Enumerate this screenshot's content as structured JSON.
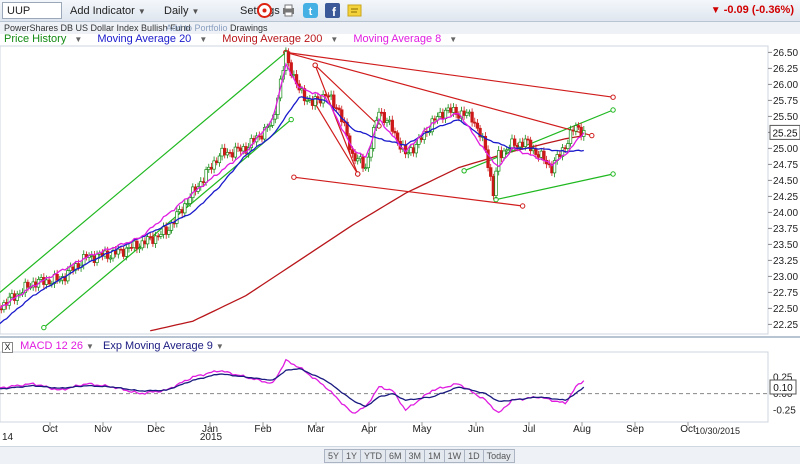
{
  "toolbar": {
    "symbol": "UUP",
    "add_indicator": "Add Indicator",
    "period": "Daily",
    "settings": "Settings",
    "change": "-0.09 (-0.36%)",
    "icons": [
      "reset-icon",
      "print-icon",
      "twitter-icon",
      "facebook-icon",
      "note-icon"
    ]
  },
  "subbar": {
    "fund_name": "PowerShares DB US Dollar Index Bullish Fund",
    "add_to_portfolio": "Add to Portfolio",
    "drawings": "Drawings"
  },
  "legend": {
    "price_history": "Price History",
    "ma20": "Moving Average 20",
    "ma200": "Moving Average 200",
    "ma8": "Moving Average 8"
  },
  "colors": {
    "price": "#138a13",
    "ma20": "#1a1acc",
    "ma200": "#b8161a",
    "ma8": "#e01ce0",
    "trendline_green": "#1fb81f",
    "trendline_red": "#d01c1c",
    "price_label_bg": "#ffffff"
  },
  "last_price_label": "25.25",
  "macd": {
    "box_label": "X",
    "label": "MACD 12 26",
    "signal_label": "Exp Moving Average 9",
    "last_value_label": "0.10"
  },
  "date_label": "10/30/2015",
  "range_buttons": [
    "5Y",
    "1Y",
    "YTD",
    "6M",
    "3M",
    "1M",
    "1W",
    "1D",
    "Today"
  ],
  "chart_data": [
    {
      "type": "candlestick",
      "title": "UUP",
      "x_labels": [
        "Oct",
        "Nov",
        "Dec",
        "Jan",
        "Feb",
        "Mar",
        "Apr",
        "May",
        "Jun",
        "Jul",
        "Aug",
        "Sep",
        "Oct"
      ],
      "year_labels": [
        "14",
        "2015"
      ],
      "y_ticks": [
        "26.50",
        "26.25",
        "26.00",
        "25.75",
        "25.50",
        "25.25",
        "25.00",
        "24.75",
        "24.50",
        "24.25",
        "24.00",
        "23.75",
        "23.50",
        "23.25",
        "23.00",
        "22.75",
        "22.50",
        "22.25"
      ],
      "ylim": [
        22.1,
        26.6
      ],
      "x_range_months": [
        0,
        13.1
      ],
      "close_anchors": [
        [
          0.0,
          22.3
        ],
        [
          0.5,
          22.6
        ],
        [
          1.0,
          22.9
        ],
        [
          1.5,
          22.95
        ],
        [
          2.0,
          23.3
        ],
        [
          2.5,
          23.35
        ],
        [
          3.0,
          23.5
        ],
        [
          3.5,
          23.7
        ],
        [
          4.0,
          24.3
        ],
        [
          4.5,
          24.9
        ],
        [
          5.0,
          25.0
        ],
        [
          5.5,
          25.4
        ],
        [
          5.75,
          26.45
        ],
        [
          6.0,
          25.9
        ],
        [
          6.25,
          25.7
        ],
        [
          6.5,
          25.85
        ],
        [
          6.75,
          25.6
        ],
        [
          7.0,
          24.9
        ],
        [
          7.25,
          24.7
        ],
        [
          7.5,
          25.6
        ],
        [
          7.75,
          25.3
        ],
        [
          8.0,
          24.9
        ],
        [
          8.25,
          25.1
        ],
        [
          8.5,
          25.4
        ],
        [
          8.75,
          25.6
        ],
        [
          9.0,
          25.55
        ],
        [
          9.25,
          25.5
        ],
        [
          9.5,
          25.0
        ],
        [
          9.65,
          24.3
        ],
        [
          9.75,
          24.9
        ],
        [
          10.0,
          25.05
        ],
        [
          10.25,
          25.1
        ],
        [
          10.5,
          24.9
        ],
        [
          10.75,
          24.7
        ],
        [
          11.0,
          25.05
        ],
        [
          11.2,
          25.35
        ],
        [
          11.35,
          25.25
        ]
      ],
      "ma20_anchors": [
        [
          0.0,
          22.0
        ],
        [
          1.0,
          22.7
        ],
        [
          2.0,
          23.2
        ],
        [
          3.0,
          23.6
        ],
        [
          4.0,
          24.0
        ],
        [
          4.5,
          24.4
        ],
        [
          5.0,
          24.9
        ],
        [
          5.5,
          25.2
        ],
        [
          6.0,
          25.8
        ],
        [
          6.5,
          25.75
        ],
        [
          7.0,
          25.3
        ],
        [
          7.5,
          25.15
        ],
        [
          8.0,
          25.05
        ],
        [
          8.5,
          25.3
        ],
        [
          9.0,
          25.45
        ],
        [
          9.5,
          25.15
        ],
        [
          10.0,
          25.0
        ],
        [
          10.5,
          25.0
        ],
        [
          11.0,
          24.95
        ],
        [
          11.35,
          24.97
        ]
      ],
      "ma8_anchors": [
        [
          0.0,
          22.3
        ],
        [
          1.0,
          22.85
        ],
        [
          2.0,
          23.3
        ],
        [
          3.0,
          23.6
        ],
        [
          4.0,
          24.3
        ],
        [
          5.0,
          24.95
        ],
        [
          5.5,
          25.45
        ],
        [
          5.75,
          26.3
        ],
        [
          6.0,
          25.95
        ],
        [
          6.5,
          25.8
        ],
        [
          7.0,
          25.0
        ],
        [
          7.25,
          24.85
        ],
        [
          7.5,
          25.45
        ],
        [
          8.0,
          24.95
        ],
        [
          8.5,
          25.4
        ],
        [
          9.0,
          25.55
        ],
        [
          9.5,
          24.95
        ],
        [
          9.75,
          24.7
        ],
        [
          10.0,
          25.0
        ],
        [
          10.5,
          24.85
        ],
        [
          10.75,
          24.75
        ],
        [
          11.0,
          24.9
        ],
        [
          11.35,
          25.25
        ]
      ],
      "ma200_anchors": [
        [
          3.2,
          22.15
        ],
        [
          4.0,
          22.3
        ],
        [
          5.0,
          22.7
        ],
        [
          6.0,
          23.25
        ],
        [
          7.0,
          23.8
        ],
        [
          8.0,
          24.3
        ],
        [
          9.0,
          24.7
        ],
        [
          10.0,
          24.95
        ],
        [
          11.0,
          25.15
        ],
        [
          11.35,
          25.2
        ]
      ],
      "trendlines": [
        {
          "color": "green",
          "from": [
            -0.2,
            22.35
          ],
          "to": [
            5.75,
            26.5
          ]
        },
        {
          "color": "green",
          "from": [
            1.2,
            22.2
          ],
          "to": [
            5.85,
            25.45
          ]
        },
        {
          "color": "green",
          "from": [
            9.1,
            24.65
          ],
          "to": [
            11.9,
            25.6
          ]
        },
        {
          "color": "green",
          "from": [
            9.7,
            24.2
          ],
          "to": [
            11.9,
            24.6
          ]
        },
        {
          "color": "red",
          "from": [
            5.75,
            26.5
          ],
          "to": [
            11.9,
            25.8
          ]
        },
        {
          "color": "red",
          "from": [
            5.75,
            26.5
          ],
          "to": [
            11.5,
            25.2
          ]
        },
        {
          "color": "red",
          "from": [
            6.3,
            25.7
          ],
          "to": [
            7.1,
            24.6
          ]
        },
        {
          "color": "red",
          "from": [
            6.3,
            26.3
          ],
          "to": [
            7.5,
            25.35
          ]
        },
        {
          "color": "red",
          "from": [
            6.3,
            26.3
          ],
          "to": [
            7.1,
            24.6
          ]
        },
        {
          "color": "red",
          "from": [
            5.9,
            24.55
          ],
          "to": [
            10.2,
            24.1
          ]
        }
      ]
    },
    {
      "type": "line",
      "title": "MACD 12 26",
      "series": [
        {
          "name": "MACD 12 26",
          "color": "#e01ce0",
          "points": [
            [
              0.0,
              0.05
            ],
            [
              0.5,
              0.1
            ],
            [
              1.0,
              0.15
            ],
            [
              1.5,
              0.05
            ],
            [
              2.0,
              0.15
            ],
            [
              2.5,
              0.1
            ],
            [
              3.0,
              0.0
            ],
            [
              3.5,
              0.05
            ],
            [
              4.0,
              0.25
            ],
            [
              4.5,
              0.35
            ],
            [
              5.0,
              0.25
            ],
            [
              5.5,
              0.15
            ],
            [
              5.75,
              0.5
            ],
            [
              6.0,
              0.4
            ],
            [
              6.5,
              0.1
            ],
            [
              7.0,
              -0.3
            ],
            [
              7.25,
              -0.2
            ],
            [
              7.5,
              0.1
            ],
            [
              7.75,
              0.05
            ],
            [
              8.0,
              -0.25
            ],
            [
              8.5,
              0.05
            ],
            [
              9.0,
              0.15
            ],
            [
              9.5,
              -0.1
            ],
            [
              9.75,
              -0.3
            ],
            [
              10.0,
              -0.1
            ],
            [
              10.5,
              -0.05
            ],
            [
              11.0,
              -0.15
            ],
            [
              11.2,
              0.1
            ],
            [
              11.35,
              0.2
            ]
          ]
        },
        {
          "name": "Exp Moving Average 9",
          "color": "#1a1a80",
          "points": [
            [
              0.0,
              0.05
            ],
            [
              0.5,
              0.08
            ],
            [
              1.0,
              0.12
            ],
            [
              1.5,
              0.08
            ],
            [
              2.0,
              0.12
            ],
            [
              2.5,
              0.1
            ],
            [
              3.0,
              0.04
            ],
            [
              3.5,
              0.05
            ],
            [
              4.0,
              0.2
            ],
            [
              4.5,
              0.3
            ],
            [
              5.0,
              0.25
            ],
            [
              5.5,
              0.2
            ],
            [
              5.75,
              0.35
            ],
            [
              6.0,
              0.38
            ],
            [
              6.5,
              0.2
            ],
            [
              7.0,
              -0.1
            ],
            [
              7.25,
              -0.2
            ],
            [
              7.5,
              -0.05
            ],
            [
              7.75,
              0.0
            ],
            [
              8.0,
              -0.1
            ],
            [
              8.5,
              -0.05
            ],
            [
              9.0,
              0.1
            ],
            [
              9.5,
              0.0
            ],
            [
              9.75,
              -0.12
            ],
            [
              10.0,
              -0.1
            ],
            [
              10.5,
              -0.05
            ],
            [
              11.0,
              -0.1
            ],
            [
              11.2,
              0.0
            ],
            [
              11.35,
              0.1
            ]
          ]
        }
      ],
      "y_ticks": [
        "0.25",
        "0.00",
        "-0.25"
      ],
      "ylim": [
        -0.4,
        0.6
      ]
    }
  ]
}
